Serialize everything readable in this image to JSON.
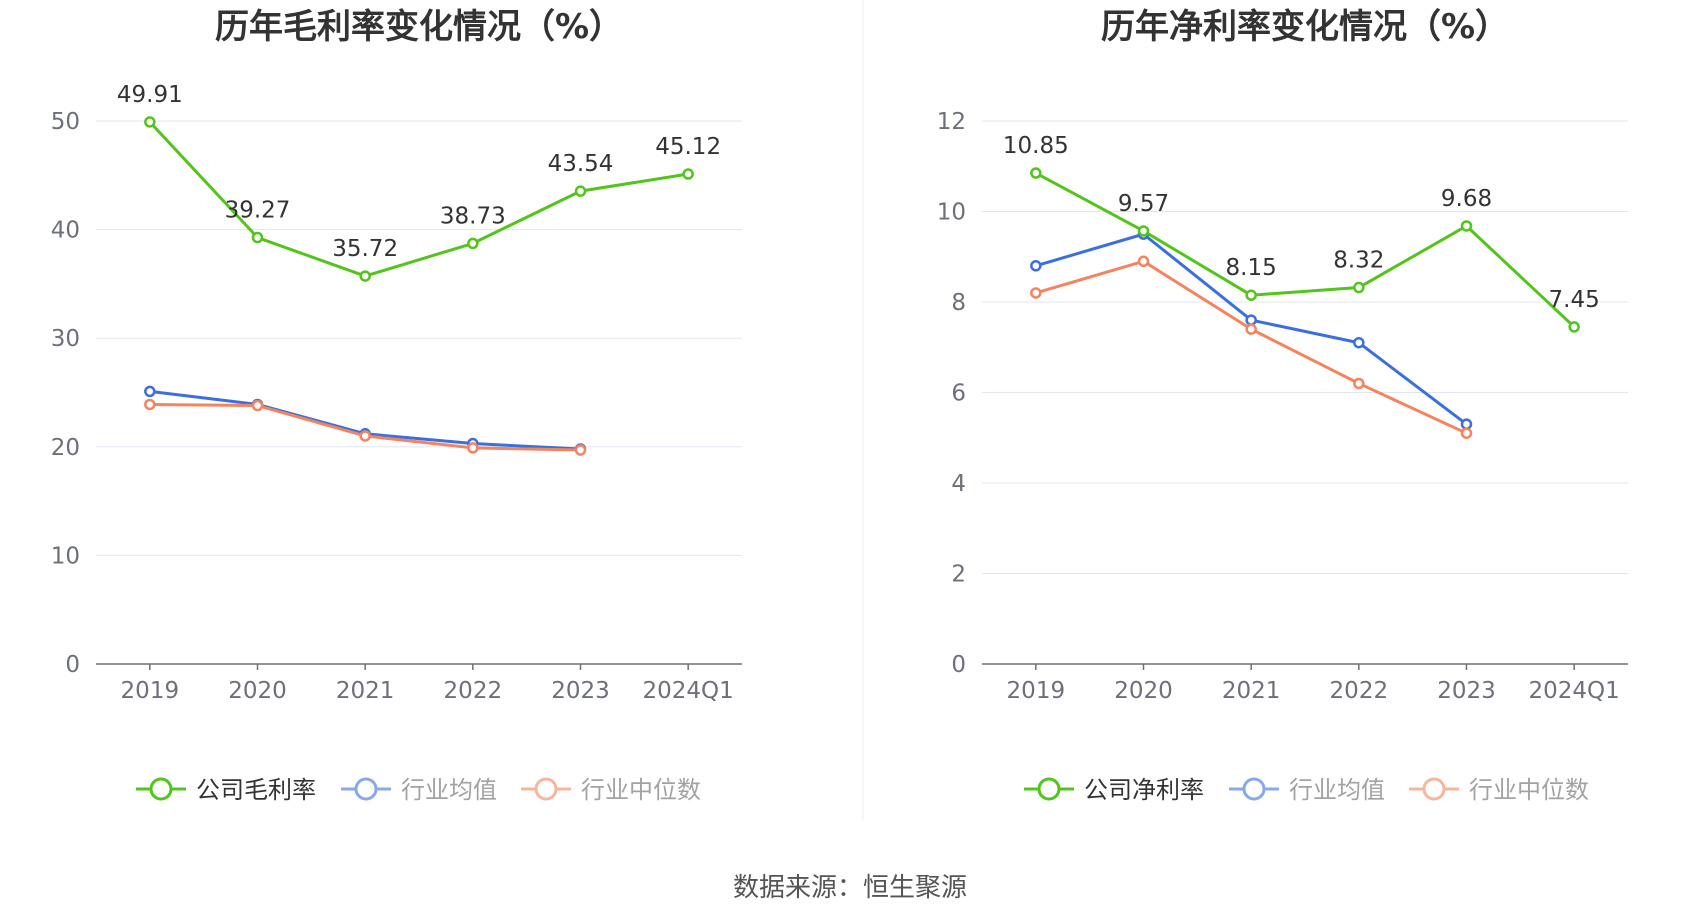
{
  "source": "数据来源：恒生聚源",
  "colors": {
    "company": "#52c41a",
    "avg": "#3b6fde",
    "median": "#f4845f",
    "grid": "#e0e6f1",
    "axis": "#6e7079",
    "divider": "#eeeeee"
  },
  "chart_data": [
    {
      "type": "line",
      "title": "历年毛利率变化情况（%）",
      "categories": [
        "2019",
        "2020",
        "2021",
        "2022",
        "2023",
        "2024Q1"
      ],
      "ylim": [
        0,
        50
      ],
      "yticks": [
        0,
        10,
        20,
        30,
        40,
        50
      ],
      "grid": true,
      "legend_position": "bottom",
      "series": [
        {
          "name": "公司毛利率",
          "color": "#52c41a",
          "values": [
            49.91,
            39.27,
            35.72,
            38.73,
            43.54,
            45.12
          ],
          "labels": [
            "49.91",
            "39.27",
            "35.72",
            "38.73",
            "43.54",
            "45.12"
          ]
        },
        {
          "name": "行业均值",
          "color": "#3b6fde",
          "values": [
            25.1,
            23.9,
            21.2,
            20.3,
            19.8,
            null
          ]
        },
        {
          "name": "行业中位数",
          "color": "#f4845f",
          "values": [
            23.9,
            23.8,
            21.0,
            19.9,
            19.7,
            null
          ]
        }
      ]
    },
    {
      "type": "line",
      "title": "历年净利率变化情况（%）",
      "categories": [
        "2019",
        "2020",
        "2021",
        "2022",
        "2023",
        "2024Q1"
      ],
      "ylim": [
        0,
        12
      ],
      "yticks": [
        0,
        2,
        4,
        6,
        8,
        10,
        12
      ],
      "grid": true,
      "legend_position": "bottom",
      "series": [
        {
          "name": "公司净利率",
          "color": "#52c41a",
          "values": [
            10.85,
            9.57,
            8.15,
            8.32,
            9.68,
            7.45
          ],
          "labels": [
            "10.85",
            "9.57",
            "8.15",
            "8.32",
            "9.68",
            "7.45"
          ]
        },
        {
          "name": "行业均值",
          "color": "#3b6fde",
          "values": [
            8.8,
            9.5,
            7.6,
            7.1,
            5.3,
            null
          ]
        },
        {
          "name": "行业中位数",
          "color": "#f4845f",
          "values": [
            8.2,
            8.9,
            7.4,
            6.2,
            5.1,
            null
          ]
        }
      ]
    }
  ]
}
